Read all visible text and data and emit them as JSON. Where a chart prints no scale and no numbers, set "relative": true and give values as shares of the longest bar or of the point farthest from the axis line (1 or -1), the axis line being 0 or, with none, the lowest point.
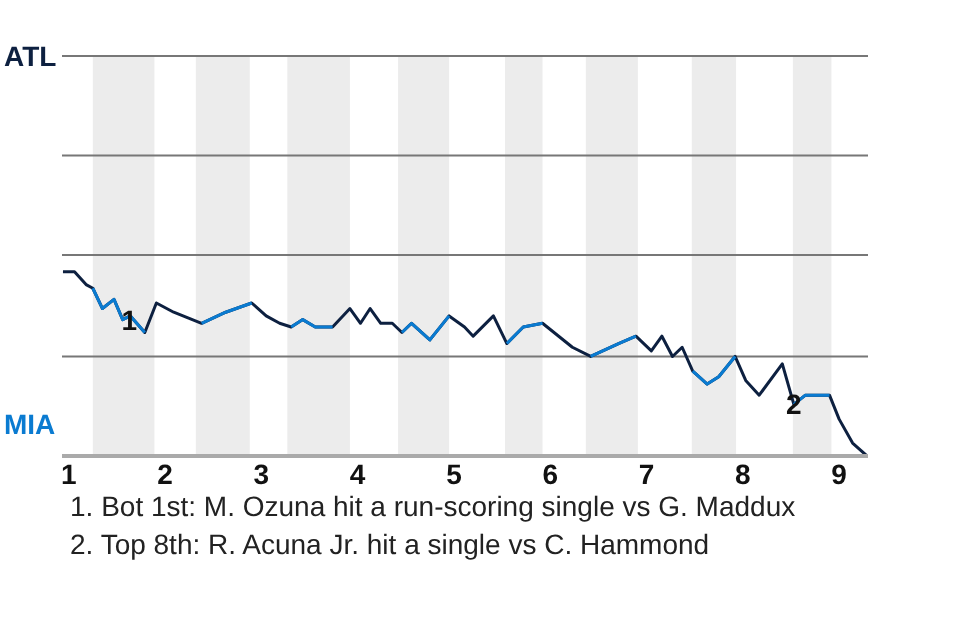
{
  "chart_data": {
    "type": "line",
    "relative": true,
    "x": [
      0.94,
      1.06,
      1.18,
      1.25,
      1.35,
      1.47,
      1.56,
      1.64,
      1.79,
      1.91,
      2.09,
      2.38,
      2.63,
      2.9,
      3.05,
      3.19,
      3.31,
      3.43,
      3.56,
      3.74,
      3.92,
      4.03,
      4.13,
      4.24,
      4.36,
      4.46,
      4.56,
      4.75,
      4.95,
      5.11,
      5.2,
      5.41,
      5.55,
      5.72,
      5.92,
      6.23,
      6.42,
      6.71,
      6.89,
      7.05,
      7.16,
      7.27,
      7.37,
      7.48,
      7.63,
      7.75,
      7.92,
      8.03,
      8.17,
      8.41,
      8.53,
      8.65,
      8.9,
      9.0,
      9.14,
      9.29
    ],
    "series": [
      {
        "color": "#0d2040",
        "values": [
          1,
          1,
          0.93,
          0.91,
          0.8,
          0.85,
          0.74,
          0.76,
          0.67,
          0.83,
          0.78,
          0.72,
          0.78,
          0.83,
          0.76,
          0.72,
          0.7,
          0.74,
          0.7,
          0.7,
          0.8,
          0.72,
          0.8,
          0.72,
          0.72,
          0.67,
          0.72,
          0.63,
          0.76,
          0.7,
          0.65,
          0.76,
          0.61,
          0.7,
          0.72,
          0.59,
          0.54,
          0.61,
          0.65,
          0.57,
          0.65,
          0.54,
          0.59,
          0.46,
          0.39,
          0.43,
          0.54,
          0.41,
          0.33,
          0.5,
          0.28,
          0.33,
          0.33,
          0.2,
          0.07,
          0
        ]
      },
      {
        "color": "#0a7bd1",
        "values": [
          null,
          null,
          null,
          0.91,
          0.8,
          0.85,
          0.74,
          0.76,
          0.67,
          null,
          null,
          0.72,
          0.78,
          0.83,
          null,
          null,
          0.7,
          0.74,
          0.7,
          0.7,
          null,
          null,
          null,
          null,
          null,
          0.67,
          0.72,
          0.63,
          0.76,
          null,
          null,
          null,
          0.61,
          0.7,
          0.72,
          null,
          0.54,
          0.61,
          0.65,
          null,
          null,
          null,
          null,
          0.46,
          0.39,
          0.43,
          0.54,
          null,
          null,
          null,
          0.28,
          0.33,
          0.33,
          null,
          null,
          null
        ]
      }
    ],
    "xlim": [
      0.93,
      9.3
    ],
    "xticks": [
      1,
      2,
      3,
      4,
      5,
      6,
      7,
      8,
      9
    ],
    "ref_lines": [
      {
        "axis": "y",
        "value": 0.54,
        "color": "#777777"
      },
      {
        "axis": "y",
        "value": 1.09,
        "color": "#777777"
      },
      {
        "axis": "y",
        "value": 1.63,
        "color": "#777777"
      },
      {
        "axis": "y",
        "value": 2.17,
        "color": "#777777"
      }
    ],
    "bands": [
      {
        "axis": "x",
        "from": 1.25,
        "to": 1.89,
        "color": "#ececec"
      },
      {
        "axis": "x",
        "from": 2.32,
        "to": 2.88,
        "color": "#ececec"
      },
      {
        "axis": "x",
        "from": 3.27,
        "to": 3.92,
        "color": "#ececec"
      },
      {
        "axis": "x",
        "from": 4.42,
        "to": 4.95,
        "color": "#ececec"
      },
      {
        "axis": "x",
        "from": 5.53,
        "to": 5.92,
        "color": "#ececec"
      },
      {
        "axis": "x",
        "from": 6.37,
        "to": 6.91,
        "color": "#ececec"
      },
      {
        "axis": "x",
        "from": 7.47,
        "to": 7.93,
        "color": "#ececec"
      },
      {
        "axis": "x",
        "from": 8.52,
        "to": 8.92,
        "color": "#ececec"
      }
    ],
    "annotations": [
      "ATL",
      "MIA",
      {
        "text": "1",
        "x": 1.63,
        "y": 0.74
      },
      {
        "text": "2",
        "x": 8.53,
        "y": 0.28
      },
      "1. Bot 1st: M. Ozuna hit a run-scoring single vs G. Maddux",
      "2. Top 8th: R. Acuna Jr. hit a single vs C. Hammond"
    ]
  }
}
